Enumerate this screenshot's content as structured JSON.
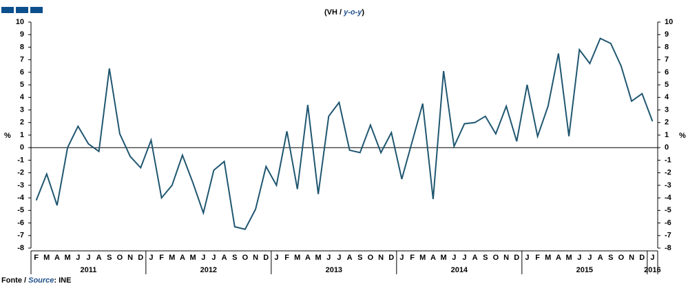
{
  "chart_data": {
    "type": "line",
    "title": "(VH / ",
    "title_emphasis": "y-o-y",
    "title_end": ")",
    "y_axis_label": "%",
    "y2_axis_label": "%",
    "source_prefix": "Fonte / ",
    "source_emphasis": "Source",
    "source_rest": ": INE",
    "groups": [
      {
        "label": "2011",
        "categories": [
          "F",
          "M",
          "A",
          "M",
          "J",
          "J",
          "A",
          "S",
          "O",
          "N",
          "D"
        ]
      },
      {
        "label": "2012",
        "categories": [
          "J",
          "F",
          "M",
          "A",
          "M",
          "J",
          "J",
          "A",
          "S",
          "O",
          "N",
          "D"
        ]
      },
      {
        "label": "2013",
        "categories": [
          "J",
          "F",
          "M",
          "A",
          "M",
          "J",
          "J",
          "A",
          "S",
          "O",
          "N",
          "D"
        ]
      },
      {
        "label": "2014",
        "categories": [
          "J",
          "F",
          "M",
          "A",
          "M",
          "J",
          "J",
          "A",
          "S",
          "O",
          "N",
          "D"
        ]
      },
      {
        "label": "2015",
        "categories": [
          "J",
          "F",
          "M",
          "A",
          "M",
          "J",
          "J",
          "A",
          "S",
          "O",
          "N",
          "D"
        ]
      },
      {
        "label": "2016",
        "categories": [
          "J"
        ]
      }
    ],
    "series": [
      {
        "color": "#1f5670",
        "values": [
          -4.2,
          -2.1,
          -4.6,
          0.0,
          1.7,
          0.3,
          -0.3,
          6.3,
          1.1,
          -0.7,
          -1.6,
          0.6,
          -4.0,
          -3.0,
          -0.6,
          -2.8,
          -5.2,
          -1.8,
          -1.1,
          -6.3,
          -6.5,
          -4.9,
          -1.5,
          -3.0,
          1.3,
          -3.3,
          3.4,
          -3.7,
          2.5,
          3.6,
          -0.2,
          -0.4,
          1.8,
          -0.4,
          1.2,
          -2.5,
          0.5,
          3.5,
          -4.1,
          6.1,
          0.1,
          1.9,
          2.0,
          2.5,
          1.1,
          3.3,
          0.5,
          5.0,
          0.9,
          3.3,
          7.5,
          0.9,
          7.8,
          6.7,
          8.7,
          8.3,
          6.5,
          3.7,
          4.3,
          2.1
        ]
      }
    ],
    "ylim": [
      -8,
      10
    ],
    "yticks": [
      -8,
      -7,
      -6,
      -5,
      -4,
      -3,
      -2,
      -1,
      0,
      1,
      2,
      3,
      4,
      5,
      6,
      7,
      8,
      9,
      10
    ],
    "y2lim": [
      -8,
      10
    ],
    "y2ticks": [
      -8,
      -7,
      -6,
      -5,
      -4,
      -3,
      -2,
      -1,
      0,
      1,
      2,
      3,
      4,
      5,
      6,
      7,
      8,
      9,
      10
    ]
  }
}
